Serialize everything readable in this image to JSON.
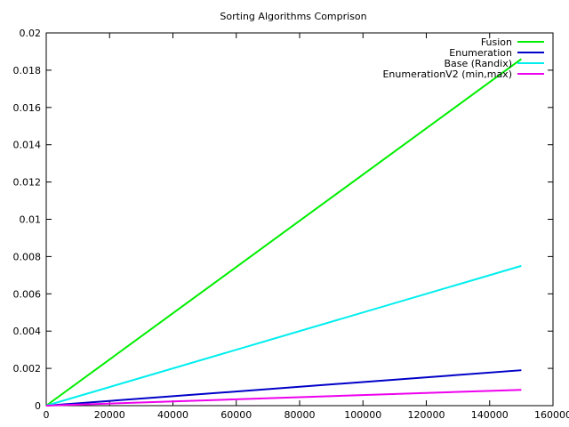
{
  "chart_data": {
    "type": "line",
    "title": "Sorting Algorithms Comprison",
    "xlabel": "",
    "ylabel": "",
    "xlim": [
      0,
      160000
    ],
    "ylim": [
      0,
      0.02
    ],
    "x_ticks": [
      0,
      20000,
      40000,
      60000,
      80000,
      100000,
      120000,
      140000,
      160000
    ],
    "x_tick_labels": [
      "0",
      "20000",
      "40000",
      "60000",
      "80000",
      "100000",
      "120000",
      "140000",
      "160000"
    ],
    "y_ticks": [
      0,
      0.002,
      0.004,
      0.006,
      0.008,
      0.01,
      0.012,
      0.014,
      0.016,
      0.018,
      0.02
    ],
    "y_tick_labels": [
      "0",
      "0.002",
      "0.004",
      "0.006",
      "0.008",
      "0.01",
      "0.012",
      "0.014",
      "0.016",
      "0.018",
      "0.02"
    ],
    "grid": false,
    "legend_position": "top-right",
    "series": [
      {
        "name": "Fusion",
        "color": "#00ee00",
        "x": [
          0,
          150000
        ],
        "y": [
          0,
          0.0186
        ]
      },
      {
        "name": "Enumeration",
        "color": "#0000c8",
        "x": [
          0,
          150000
        ],
        "y": [
          0,
          0.0019
        ]
      },
      {
        "name": "Base (Randix)",
        "color": "#00eeee",
        "x": [
          0,
          150000
        ],
        "y": [
          0,
          0.0075
        ]
      },
      {
        "name": "EnumerationV2 (min,max)",
        "color": "#ee00ee",
        "x": [
          0,
          150000
        ],
        "y": [
          0,
          0.00085
        ]
      }
    ]
  }
}
